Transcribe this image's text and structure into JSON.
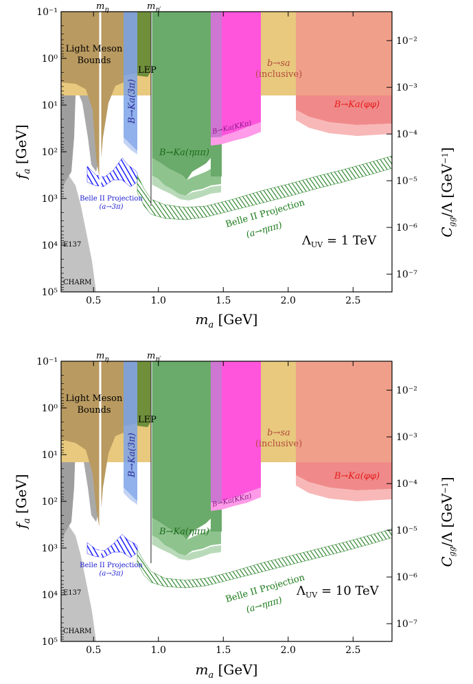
{
  "chart_data": [
    {
      "type": "area",
      "panel": "top",
      "xlabel": "m_a [GeV]",
      "ylabel": "f_a [GeV]",
      "y2label": "C_gg / Λ [GeV^-1]",
      "xlim": [
        0.25,
        2.8
      ],
      "ylim_log10": [
        -1,
        5
      ],
      "y_inverted": true,
      "x_ticks": [
        "0.5",
        "1.0",
        "1.5",
        "2.0",
        "2.5"
      ],
      "x_tick_values": [
        0.5,
        1.0,
        1.5,
        2.0,
        2.5
      ],
      "y_ticks": [
        "10⁻¹",
        "10⁰",
        "10¹",
        "10²",
        "10³",
        "10⁴",
        "10⁵"
      ],
      "y2_ticks": [
        "10⁻²",
        "10⁻³",
        "10⁻⁴",
        "10⁻⁵",
        "10⁻⁶",
        "10⁻⁷"
      ],
      "scale_label": "Λ_UV = 1 TeV",
      "meson_lines": [
        {
          "label": "m_η",
          "x": 0.548
        },
        {
          "label": "m_η′",
          "x": 0.958
        }
      ],
      "regions": [
        {
          "name": "Light Meson Bounds",
          "x": [
            0.25,
            0.84
          ],
          "color": "#b99a60"
        },
        {
          "name": "LEP",
          "x": [
            0.84,
            1.39
          ],
          "color": "#6f8f3a"
        },
        {
          "name": "b→sa (inclusive)",
          "x": [
            1.39,
            2.8
          ],
          "color": "#e6c47a"
        },
        {
          "name": "B→Ka(3π)",
          "x": [
            0.72,
            0.84
          ],
          "color": "#6f9be0"
        },
        {
          "name": "B→Ka(ηππ)",
          "x": [
            0.84,
            1.49
          ],
          "color": "#6aaa6a"
        },
        {
          "name": "B→Ka(KKπ)",
          "x": [
            1.39,
            1.79
          ],
          "color": "#ff55dd"
        },
        {
          "name": "B→Ka(φφ)",
          "x": [
            2.06,
            2.8
          ],
          "color": "#f08080"
        },
        {
          "name": "E137",
          "x": [
            0.25,
            0.37
          ],
          "color": "#999999"
        },
        {
          "name": "CHARM",
          "x": [
            0.25,
            0.55
          ],
          "color": "#bbbbbb"
        },
        {
          "name": "Belle II Projection (a→3π)",
          "x": [
            0.45,
            0.84
          ],
          "color": "#1a1aff"
        },
        {
          "name": "Belle II Projection (a→ηππ)",
          "x": [
            0.84,
            2.8
          ],
          "color": "#1a7a1a"
        }
      ]
    },
    {
      "type": "area",
      "panel": "bottom",
      "xlabel": "m_a [GeV]",
      "ylabel": "f_a [GeV]",
      "y2label": "C_gg / Λ [GeV^-1]",
      "xlim": [
        0.25,
        2.8
      ],
      "ylim_log10": [
        -1,
        5
      ],
      "y_inverted": true,
      "x_ticks": [
        "0.5",
        "1.0",
        "1.5",
        "2.0",
        "2.5"
      ],
      "x_tick_values": [
        0.5,
        1.0,
        1.5,
        2.0,
        2.5
      ],
      "y_ticks": [
        "10⁻¹",
        "10⁰",
        "10¹",
        "10²",
        "10³",
        "10⁴",
        "10⁵"
      ],
      "y2_ticks": [
        "10⁻²",
        "10⁻³",
        "10⁻⁴",
        "10⁻⁵",
        "10⁻⁶",
        "10⁻⁷"
      ],
      "scale_label": "Λ_UV = 10 TeV",
      "meson_lines": [
        {
          "label": "m_η",
          "x": 0.548
        },
        {
          "label": "m_η′",
          "x": 0.958
        }
      ]
    }
  ]
}
